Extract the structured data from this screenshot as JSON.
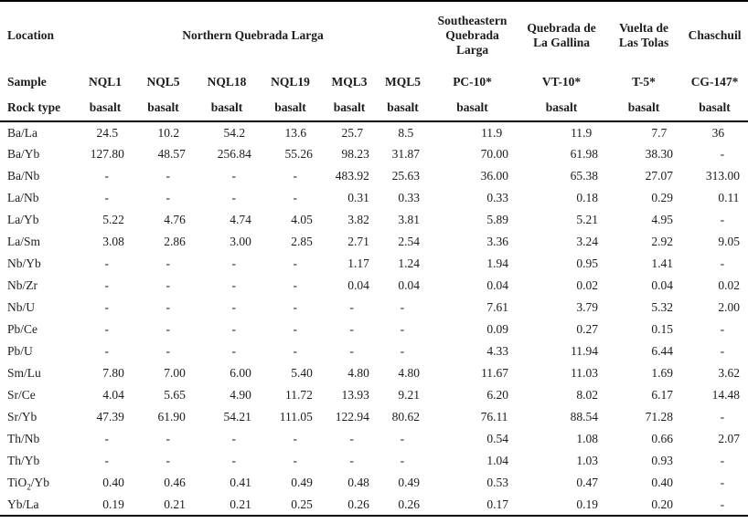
{
  "page": {
    "background": "#ffffff",
    "text_color": "#1c1c1c",
    "rule_color": "#000000",
    "missing_value_symbol": "-"
  },
  "table": {
    "header": {
      "location_label": "Location",
      "sample_label": "Sample",
      "rock_type_label": "Rock type",
      "location_groups": [
        {
          "text": "Northern Quebrada Larga",
          "span": 6
        },
        {
          "text": "Southeastern Quebrada Larga",
          "span": 1
        },
        {
          "text": "Quebrada de La Gallina",
          "span": 1
        },
        {
          "text": "Vuelta de Las Tolas",
          "span": 1
        },
        {
          "text": "Chaschuil",
          "span": 1
        }
      ],
      "samples": [
        "NQL1",
        "NQL5",
        "NQL18",
        "NQL19",
        "MQL3",
        "MQL5",
        "PC-10*",
        "VT-10*",
        "T-5*",
        "CG-147*"
      ],
      "rock_types": [
        "basalt",
        "basalt",
        "basalt",
        "basalt",
        "basalt",
        "basalt",
        "basalt",
        "basalt",
        "basalt",
        "basalt"
      ]
    },
    "rows": [
      {
        "label": "Ba/La",
        "values": [
          "24.5",
          "10.2",
          "54.2",
          "13.6",
          "25.7",
          "8.5",
          "11.9",
          "11.9",
          "7.7",
          "36"
        ]
      },
      {
        "label": "Ba/Yb",
        "values": [
          "127.80",
          "48.57",
          "256.84",
          "55.26",
          "98.23",
          "31.87",
          "70.00",
          "61.98",
          "38.30",
          "-"
        ]
      },
      {
        "label": "Ba/Nb",
        "values": [
          "-",
          "-",
          "-",
          "-",
          "483.92",
          "25.63",
          "36.00",
          "65.38",
          "27.07",
          "313.00"
        ]
      },
      {
        "label": "La/Nb",
        "values": [
          "-",
          "-",
          "-",
          "-",
          "0.31",
          "0.33",
          "0.33",
          "0.18",
          "0.29",
          "0.11"
        ]
      },
      {
        "label": "La/Yb",
        "values": [
          "5.22",
          "4.76",
          "4.74",
          "4.05",
          "3.82",
          "3.81",
          "5.89",
          "5.21",
          "4.95",
          "-"
        ]
      },
      {
        "label": "La/Sm",
        "values": [
          "3.08",
          "2.86",
          "3.00",
          "2.85",
          "2.71",
          "2.54",
          "3.36",
          "3.24",
          "2.92",
          "9.05"
        ]
      },
      {
        "label": "Nb/Yb",
        "values": [
          "-",
          "-",
          "-",
          "-",
          "1.17",
          "1.24",
          "1.94",
          "0.95",
          "1.41",
          "-"
        ]
      },
      {
        "label": "Nb/Zr",
        "values": [
          "-",
          "-",
          "-",
          "-",
          "0.04",
          "0.04",
          "0.04",
          "0.02",
          "0.04",
          "0.02"
        ]
      },
      {
        "label": "Nb/U",
        "values": [
          "-",
          "-",
          "-",
          "-",
          "-",
          "-",
          "7.61",
          "3.79",
          "5.32",
          "2.00"
        ]
      },
      {
        "label": "Pb/Ce",
        "values": [
          "-",
          "-",
          "-",
          "-",
          "-",
          "-",
          "0.09",
          "0.27",
          "0.15",
          "-"
        ]
      },
      {
        "label": "Pb/U",
        "values": [
          "-",
          "-",
          "-",
          "-",
          "-",
          "-",
          "4.33",
          "11.94",
          "6.44",
          "-"
        ]
      },
      {
        "label": "Sm/Lu",
        "values": [
          "7.80",
          "7.00",
          "6.00",
          "5.40",
          "4.80",
          "4.80",
          "11.67",
          "11.03",
          "1.69",
          "3.62"
        ]
      },
      {
        "label": "Sr/Ce",
        "values": [
          "4.04",
          "5.65",
          "4.90",
          "11.72",
          "13.93",
          "9.21",
          "6.20",
          "8.02",
          "6.17",
          "14.48"
        ]
      },
      {
        "label": "Sr/Yb",
        "values": [
          "47.39",
          "61.90",
          "54.21",
          "111.05",
          "122.94",
          "80.62",
          "76.11",
          "88.54",
          "71.28",
          "-"
        ]
      },
      {
        "label": "Th/Nb",
        "values": [
          "-",
          "-",
          "-",
          "-",
          "-",
          "-",
          "0.54",
          "1.08",
          "0.66",
          "2.07"
        ]
      },
      {
        "label": "Th/Yb",
        "values": [
          "-",
          "-",
          "-",
          "-",
          "-",
          "-",
          "1.04",
          "1.03",
          "0.93",
          "-"
        ]
      },
      {
        "label": "TiO2/Yb",
        "values": [
          "0.40",
          "0.46",
          "0.41",
          "0.49",
          "0.48",
          "0.49",
          "0.53",
          "0.47",
          "0.40",
          "-"
        ]
      },
      {
        "label": "Yb/La",
        "values": [
          "0.19",
          "0.21",
          "0.21",
          "0.25",
          "0.26",
          "0.26",
          "0.17",
          "0.19",
          "0.20",
          "-"
        ]
      }
    ]
  }
}
